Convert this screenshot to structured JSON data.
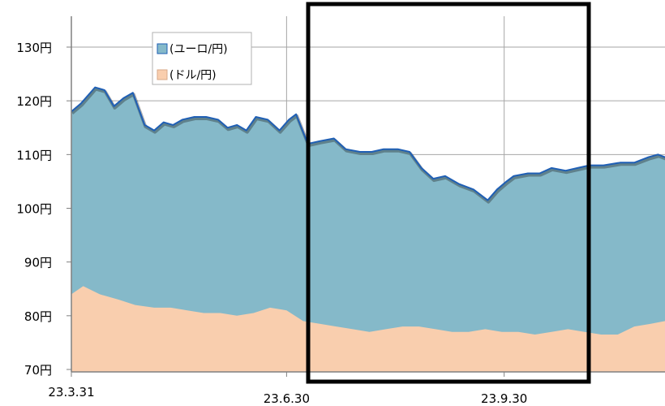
{
  "chart_data": {
    "type": "area",
    "y_axis": {
      "ylim": [
        70,
        135
      ],
      "ticks": [
        70,
        80,
        90,
        100,
        110,
        120,
        130
      ],
      "tick_labels": [
        "70円",
        "80円",
        "90円",
        "100円",
        "110円",
        "120円",
        "130円"
      ]
    },
    "x_axis": {
      "range": [
        "2023-03-31",
        "2023-12-07"
      ],
      "ticks": [
        "2023-03-31",
        "2023-06-30",
        "2023-09-30"
      ],
      "tick_labels": [
        "23.3.31",
        "23.6.30",
        "23.9.30"
      ]
    },
    "grid": "horizontal and vertical",
    "legend": "top-left",
    "series": [
      {
        "name": "(ユーロ/円)",
        "color": "#85b9c9",
        "line_color": "#1f5fb5",
        "x": [
          "2023-03-31",
          "2023-04-04",
          "2023-04-10",
          "2023-04-14",
          "2023-04-18",
          "2023-04-22",
          "2023-04-26",
          "2023-05-01",
          "2023-05-05",
          "2023-05-09",
          "2023-05-13",
          "2023-05-17",
          "2023-05-22",
          "2023-05-27",
          "2023-06-01",
          "2023-06-05",
          "2023-06-09",
          "2023-06-13",
          "2023-06-17",
          "2023-06-22",
          "2023-06-27",
          "2023-07-01",
          "2023-07-04",
          "2023-07-09",
          "2023-07-14",
          "2023-07-20",
          "2023-07-25",
          "2023-07-31",
          "2023-08-05",
          "2023-08-10",
          "2023-08-16",
          "2023-08-21",
          "2023-08-26",
          "2023-08-31",
          "2023-09-05",
          "2023-09-11",
          "2023-09-17",
          "2023-09-23",
          "2023-09-27",
          "2023-10-01",
          "2023-10-04",
          "2023-10-10",
          "2023-10-15",
          "2023-10-20",
          "2023-10-26",
          "2023-10-31",
          "2023-11-05",
          "2023-11-11",
          "2023-11-18",
          "2023-11-24",
          "2023-11-30",
          "2023-12-04",
          "2023-12-07"
        ],
        "values": [
          118.0,
          119.5,
          122.5,
          122.0,
          119.0,
          120.5,
          121.5,
          115.5,
          114.5,
          116.0,
          115.5,
          116.5,
          117.0,
          117.0,
          116.5,
          115.0,
          115.5,
          114.5,
          117.0,
          116.5,
          114.5,
          116.5,
          117.5,
          112.0,
          112.5,
          113.0,
          111.0,
          110.5,
          110.5,
          111.0,
          111.0,
          110.5,
          107.5,
          105.5,
          106.0,
          104.5,
          103.5,
          101.5,
          103.5,
          105.0,
          106.0,
          106.5,
          106.5,
          107.5,
          107.0,
          107.5,
          108.0,
          108.0,
          108.5,
          108.5,
          109.5,
          110.0,
          109.5
        ]
      },
      {
        "name": "(ドル/円)",
        "color": "#f9ceae",
        "x": [
          "2023-03-31",
          "2023-04-05",
          "2023-04-12",
          "2023-04-20",
          "2023-04-27",
          "2023-05-05",
          "2023-05-12",
          "2023-05-19",
          "2023-05-26",
          "2023-06-02",
          "2023-06-09",
          "2023-06-16",
          "2023-06-23",
          "2023-06-30",
          "2023-07-07",
          "2023-07-14",
          "2023-07-21",
          "2023-07-28",
          "2023-08-04",
          "2023-08-11",
          "2023-08-18",
          "2023-08-25",
          "2023-09-01",
          "2023-09-08",
          "2023-09-15",
          "2023-09-22",
          "2023-09-29",
          "2023-10-06",
          "2023-10-13",
          "2023-10-20",
          "2023-10-27",
          "2023-11-03",
          "2023-11-10",
          "2023-11-17",
          "2023-11-24",
          "2023-12-01",
          "2023-12-07"
        ],
        "values": [
          84.0,
          85.5,
          84.0,
          83.0,
          82.0,
          81.5,
          81.5,
          81.0,
          80.5,
          80.5,
          80.0,
          80.5,
          81.5,
          81.0,
          79.0,
          78.5,
          78.0,
          77.5,
          77.0,
          77.5,
          78.0,
          78.0,
          77.5,
          77.0,
          77.0,
          77.5,
          77.0,
          77.0,
          76.5,
          77.0,
          77.5,
          77.0,
          76.5,
          76.5,
          78.0,
          78.5,
          79.0
        ]
      }
    ]
  }
}
